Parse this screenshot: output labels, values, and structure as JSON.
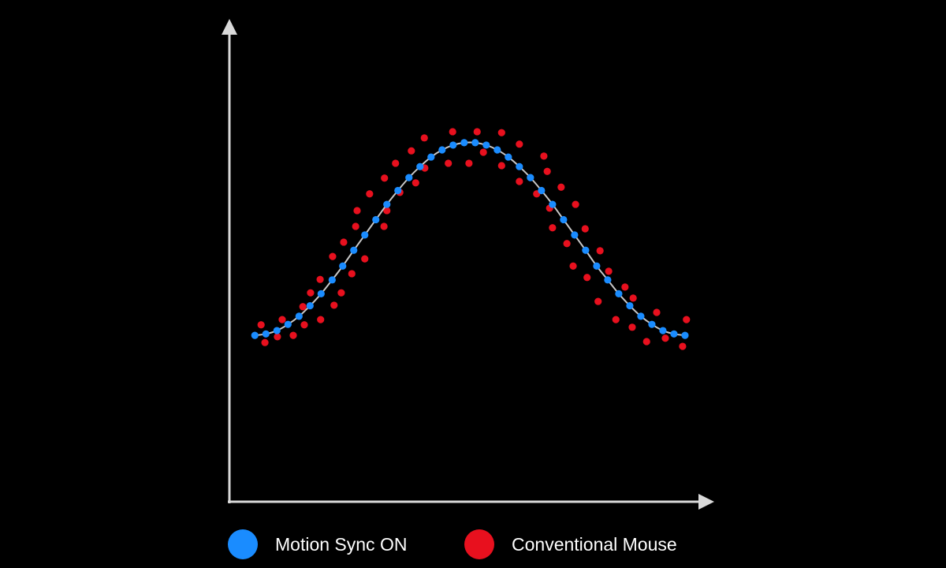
{
  "chart_data": {
    "type": "scatter",
    "title": "",
    "xlabel": "",
    "ylabel": "",
    "xlim": [
      0,
      100
    ],
    "ylim": [
      0,
      100
    ],
    "grid": false,
    "axis_ticks": false,
    "legend_position": "bottom",
    "axis_color": "#d9d9d9",
    "curve_color": "#c8c8c8",
    "series": [
      {
        "name": "Motion Sync ON",
        "color": "#1a8cff",
        "connected_by_smooth_line": true,
        "x": [
          5.3,
          7.6,
          9.9,
          12.2,
          14.5,
          16.8,
          19.1,
          21.4,
          23.6,
          25.9,
          28.2,
          30.5,
          32.8,
          35.1,
          37.4,
          39.7,
          42.0,
          44.3,
          46.6,
          48.9,
          51.2,
          53.5,
          55.8,
          58.1,
          60.4,
          62.7,
          65.0,
          67.3,
          69.6,
          71.9,
          74.2,
          76.5,
          78.8,
          81.1,
          83.4,
          85.7,
          88.0,
          90.3,
          92.6,
          94.9
        ],
        "y": [
          34.8,
          35.1,
          35.8,
          37.1,
          38.8,
          41.0,
          43.5,
          46.4,
          49.3,
          52.6,
          55.8,
          59.0,
          62.2,
          65.1,
          67.8,
          70.1,
          72.1,
          73.6,
          74.6,
          75.1,
          75.1,
          74.6,
          73.6,
          72.1,
          70.1,
          67.8,
          65.1,
          62.2,
          59.0,
          55.8,
          52.6,
          49.3,
          46.4,
          43.5,
          41.0,
          38.8,
          37.1,
          35.8,
          35.1,
          34.8
        ]
      },
      {
        "name": "Conventional Mouse",
        "color": "#e8101e",
        "connected_by_smooth_line": false,
        "x": [
          6.6,
          7.4,
          10.0,
          11.0,
          13.3,
          15.3,
          15.6,
          16.9,
          18.9,
          19.0,
          21.5,
          21.8,
          23.3,
          23.8,
          25.5,
          26.3,
          26.6,
          28.2,
          29.2,
          32.2,
          32.8,
          32.3,
          34.6,
          35.5,
          37.9,
          38.8,
          40.6,
          40.7,
          45.6,
          46.5,
          49.9,
          51.6,
          56.7,
          52.9,
          56.7,
          60.4,
          60.4,
          65.5,
          66.2,
          64.0,
          69.1,
          66.7,
          72.1,
          67.3,
          74.1,
          70.3,
          77.2,
          71.6,
          79.0,
          74.5,
          82.4,
          84.1,
          76.8,
          89.0,
          80.5,
          95.2,
          83.9,
          90.8,
          86.9,
          94.4
        ],
        "y": [
          37.0,
          33.3,
          34.5,
          38.1,
          34.8,
          40.8,
          37.0,
          43.7,
          46.5,
          38.1,
          51.3,
          41.1,
          43.7,
          54.3,
          47.7,
          57.6,
          60.9,
          50.8,
          64.4,
          57.6,
          60.9,
          67.7,
          70.8,
          64.7,
          73.4,
          66.7,
          76.1,
          69.8,
          70.8,
          77.4,
          70.8,
          77.4,
          77.2,
          73.1,
          70.3,
          74.8,
          67.0,
          72.3,
          69.1,
          64.4,
          65.8,
          61.4,
          62.2,
          57.3,
          57.1,
          54.0,
          52.5,
          49.3,
          48.2,
          46.9,
          44.9,
          42.6,
          41.9,
          39.6,
          38.1,
          38.1,
          36.5,
          34.2,
          33.5,
          32.5
        ]
      }
    ]
  },
  "legend": {
    "items": [
      {
        "label": "Motion Sync ON",
        "color": "#1a8cff"
      },
      {
        "label": "Conventional Mouse",
        "color": "#e8101e"
      }
    ]
  }
}
